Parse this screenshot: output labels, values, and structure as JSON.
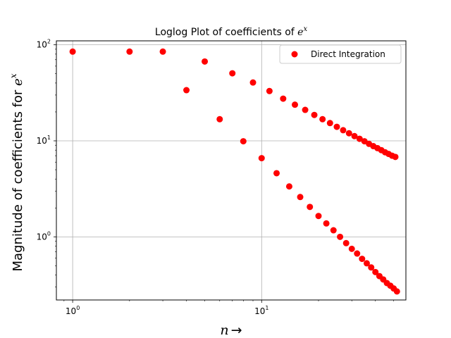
{
  "chart_data": {
    "type": "scatter",
    "title_prefix": "Loglog Plot of coefficients of ",
    "title_math": "e",
    "title_math_sup": "x",
    "xlabel_math": "n",
    "xlabel_arrow": "→",
    "ylabel_prefix": "Magnitude of coefficients for ",
    "ylabel_math": "e",
    "ylabel_math_sup": "x",
    "xscale": "log",
    "yscale": "log",
    "xlim": [
      0.82,
      58
    ],
    "ylim": [
      0.22,
      110
    ],
    "grid": true,
    "legend_position": "top-right",
    "x_ticks": [
      {
        "value": 1,
        "base": "10",
        "exp": "0"
      },
      {
        "value": 10,
        "base": "10",
        "exp": "1"
      }
    ],
    "y_ticks": [
      {
        "value": 1,
        "base": "10",
        "exp": "0"
      },
      {
        "value": 10,
        "base": "10",
        "exp": "1"
      },
      {
        "value": 100,
        "base": "10",
        "exp": "2"
      }
    ],
    "series": [
      {
        "name": "Direct Integration",
        "color": "#ff0000",
        "marker": "circle",
        "points": [
          [
            1,
            85.0
          ],
          [
            2,
            85.0
          ],
          [
            3,
            85.0
          ],
          [
            4,
            33.7
          ],
          [
            5,
            67.0
          ],
          [
            6,
            16.8
          ],
          [
            7,
            50.5
          ],
          [
            8,
            9.9
          ],
          [
            9,
            40.5
          ],
          [
            10,
            6.6
          ],
          [
            11,
            33.0
          ],
          [
            12,
            4.6
          ],
          [
            13,
            27.5
          ],
          [
            14,
            3.35
          ],
          [
            15,
            23.8
          ],
          [
            16,
            2.6
          ],
          [
            17,
            21.0
          ],
          [
            18,
            2.05
          ],
          [
            19,
            18.6
          ],
          [
            20,
            1.65
          ],
          [
            21,
            16.8
          ],
          [
            22,
            1.38
          ],
          [
            23,
            15.3
          ],
          [
            24,
            1.17
          ],
          [
            25,
            14.0
          ],
          [
            26,
            1.0
          ],
          [
            27,
            12.9
          ],
          [
            28,
            0.86
          ],
          [
            29,
            12.0
          ],
          [
            30,
            0.75
          ],
          [
            31,
            11.2
          ],
          [
            32,
            0.67
          ],
          [
            33,
            10.5
          ],
          [
            34,
            0.59
          ],
          [
            35,
            9.9
          ],
          [
            36,
            0.53
          ],
          [
            37,
            9.3
          ],
          [
            38,
            0.48
          ],
          [
            39,
            8.8
          ],
          [
            40,
            0.43
          ],
          [
            41,
            8.4
          ],
          [
            42,
            0.39
          ],
          [
            43,
            8.0
          ],
          [
            44,
            0.36
          ],
          [
            45,
            7.6
          ],
          [
            46,
            0.33
          ],
          [
            47,
            7.3
          ],
          [
            48,
            0.31
          ],
          [
            49,
            7.0
          ],
          [
            50,
            0.29
          ],
          [
            51,
            6.8
          ],
          [
            52,
            0.27
          ]
        ]
      }
    ]
  }
}
